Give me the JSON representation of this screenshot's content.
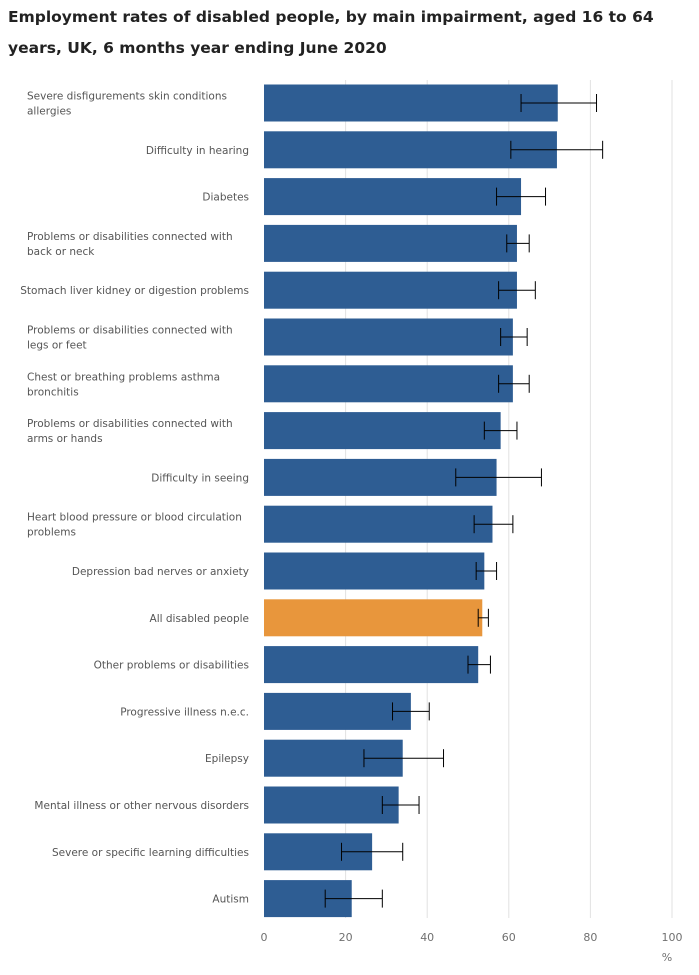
{
  "chart_data": {
    "type": "bar",
    "orientation": "horizontal",
    "title": "Employment rates of disabled people, by main impairment, aged 16 to 64 years, UK, 6 months year ending June 2020",
    "xlabel": "%",
    "ylabel": "",
    "xlim": [
      0,
      100
    ],
    "xticks": [
      "0",
      "20",
      "40",
      "60",
      "80",
      "100"
    ],
    "grid": true,
    "legend": "none",
    "colors": {
      "default_bar": "#2e5d93",
      "highlight_bar": "#e8963c",
      "gridline": "#e2e2e2",
      "error_bar": "#000000"
    },
    "categories": [
      "Severe disfigurements skin conditions allergies",
      "Difficulty in hearing",
      "Diabetes",
      "Problems or disabilities connected with back or neck",
      "Stomach liver kidney or digestion problems",
      "Problems or disabilities connected with legs or feet",
      "Chest or breathing problems asthma bronchitis",
      "Problems or disabilities connected with arms or hands",
      "Difficulty in seeing",
      "Heart blood pressure or blood circulation problems",
      "Depression bad nerves or anxiety",
      "All disabled people",
      "Other problems or disabilities",
      "Progressive illness n.e.c.",
      "Epilepsy",
      "Mental illness or other nervous disorders",
      "Severe or specific learning difficulties",
      "Autism"
    ],
    "category_lines": [
      [
        "Severe disfigurements skin conditions",
        "allergies"
      ],
      [
        "Difficulty in hearing"
      ],
      [
        "Diabetes"
      ],
      [
        "Problems or disabilities connected with",
        "back or neck"
      ],
      [
        "Stomach liver kidney or digestion problems"
      ],
      [
        "Problems or disabilities connected with",
        "legs or feet"
      ],
      [
        "Chest or breathing problems asthma",
        "bronchitis"
      ],
      [
        "Problems or disabilities connected with",
        "arms or hands"
      ],
      [
        "Difficulty in seeing"
      ],
      [
        "Heart blood pressure or blood circulation",
        "problems"
      ],
      [
        "Depression bad nerves or anxiety"
      ],
      [
        "All disabled people"
      ],
      [
        "Other problems or disabilities"
      ],
      [
        "Progressive illness n.e.c."
      ],
      [
        "Epilepsy"
      ],
      [
        "Mental illness or other nervous disorders"
      ],
      [
        "Severe or specific learning difficulties"
      ],
      [
        "Autism"
      ]
    ],
    "values": [
      72.0,
      71.8,
      63.0,
      62.0,
      62.0,
      61.0,
      61.0,
      58.0,
      57.0,
      56.0,
      54.0,
      53.5,
      52.5,
      36.0,
      34.0,
      33.0,
      26.5,
      21.5
    ],
    "error_low": [
      63.0,
      60.5,
      57.0,
      59.5,
      57.5,
      58.0,
      57.5,
      54.0,
      47.0,
      51.5,
      52.0,
      52.5,
      50.0,
      31.5,
      24.5,
      29.0,
      19.0,
      15.0
    ],
    "error_high": [
      81.5,
      83.0,
      69.0,
      65.0,
      66.5,
      64.5,
      65.0,
      62.0,
      68.0,
      61.0,
      57.0,
      55.0,
      55.5,
      40.5,
      44.0,
      38.0,
      34.0,
      29.0
    ],
    "highlight_index": 11
  }
}
